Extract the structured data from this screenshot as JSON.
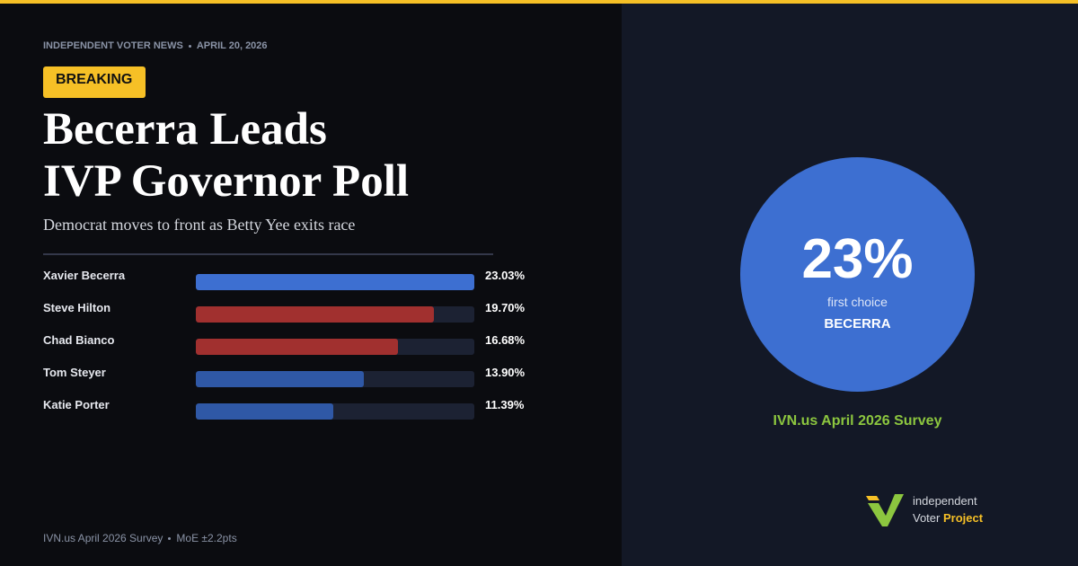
{
  "header": {
    "outlet": "INDEPENDENT VOTER NEWS",
    "date": "APRIL 20, 2026",
    "tag": "BREAKING"
  },
  "headline": [
    "Becerra Leads",
    "IVP Governor Poll"
  ],
  "subtitle": "Democrat moves to front as Betty Yee exits race",
  "chart_data": {
    "type": "bar",
    "orientation": "horizontal",
    "categories": [
      "Xavier Becerra",
      "Steve Hilton",
      "Chad Bianco",
      "Tom Steyer",
      "Katie Porter"
    ],
    "values": [
      23.03,
      19.7,
      16.68,
      13.9,
      11.39
    ],
    "value_labels": [
      "23.03%",
      "19.70%",
      "16.68%",
      "13.90%",
      "11.39%"
    ],
    "colors": [
      "#3d6fd1",
      "#a1302f",
      "#a1302f",
      "#2f58a6",
      "#2f58a6"
    ],
    "xlim": [
      0,
      23.03
    ]
  },
  "callout": {
    "figure": "23%",
    "caption": "first choice",
    "name": "BECERRA",
    "source": "IVN.us April 2026 Survey"
  },
  "footer": {
    "source": "IVN.us April 2026 Survey",
    "moe": "MoE ±2.2pts"
  },
  "logo": {
    "line1": "independent",
    "line2a": "Voter",
    "line2b": "Project"
  }
}
